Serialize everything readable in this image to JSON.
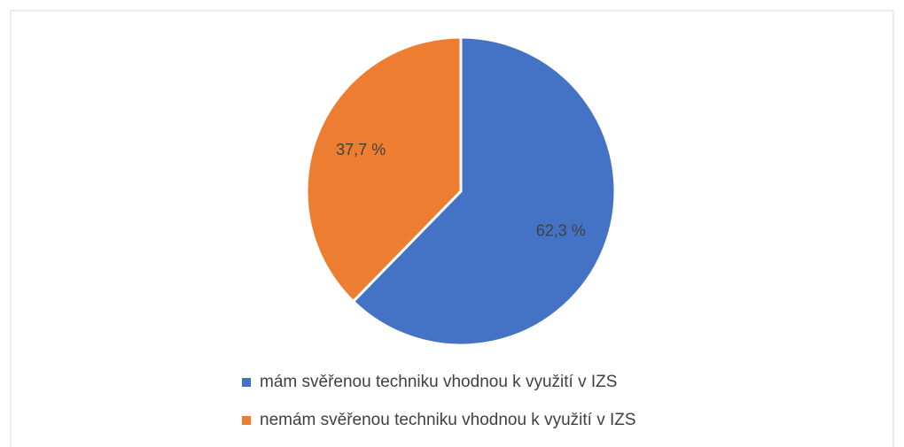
{
  "chart_data": {
    "type": "pie",
    "categories": [
      "mám svěřenou techniku vhodnou k využití v IZS",
      "nemám svěřenou techniku vhodnou k využití v IZS"
    ],
    "values": [
      62.3,
      37.7
    ],
    "value_labels": [
      "62,3 %",
      "37,7 %"
    ],
    "colors": [
      "#4472c4",
      "#ed7d31"
    ]
  }
}
